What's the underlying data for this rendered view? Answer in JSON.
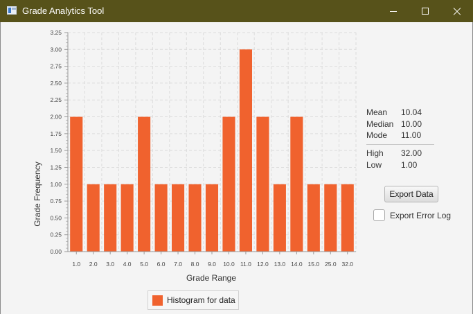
{
  "window": {
    "title": "Grade Analytics Tool"
  },
  "chart_data": {
    "type": "bar",
    "xlabel": "Grade Range",
    "ylabel": "Grade Frequency",
    "categories": [
      "1.0",
      "2.0",
      "3.0",
      "4.0",
      "5.0",
      "6.0",
      "7.0",
      "8.0",
      "9.0",
      "10.0",
      "11.0",
      "12.0",
      "13.0",
      "14.0",
      "15.0",
      "25.0",
      "32.0"
    ],
    "series": [
      {
        "name": "Histogram for data",
        "values": [
          2,
          1,
          1,
          1,
          2,
          1,
          1,
          1,
          1,
          2,
          3,
          2,
          1,
          2,
          1,
          1,
          1
        ],
        "color": "#f0622e"
      }
    ],
    "ylim": [
      0,
      3.25
    ],
    "yticks": [
      "0.00",
      "0.25",
      "0.50",
      "0.75",
      "1.00",
      "1.25",
      "1.50",
      "1.75",
      "2.00",
      "2.25",
      "2.50",
      "2.75",
      "3.00",
      "3.25"
    ],
    "grid": true,
    "legend": "bottom"
  },
  "stats": {
    "mean_label": "Mean",
    "mean_value": "10.04",
    "median_label": "Median",
    "median_value": "10.00",
    "mode_label": "Mode",
    "mode_value": "11.00",
    "high_label": "High",
    "high_value": "32.00",
    "low_label": "Low",
    "low_value": "1.00"
  },
  "controls": {
    "export_data_label": "Export Data",
    "export_error_log_label": "Export Error Log",
    "export_error_log_checked": false
  }
}
